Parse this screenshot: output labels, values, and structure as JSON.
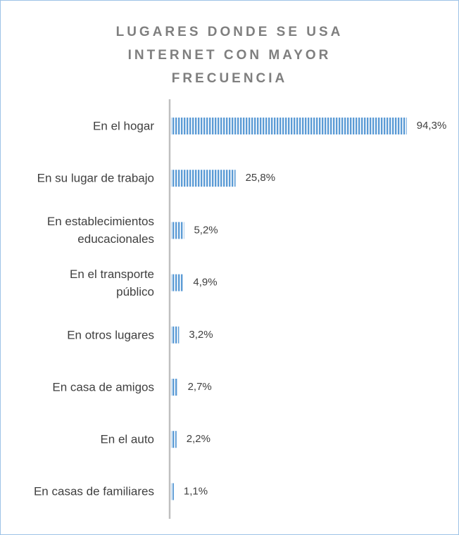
{
  "chart_data": {
    "type": "barh",
    "title": "LUGARES DONDE SE USA INTERNET CON MAYOR FRECUENCIA",
    "categories": [
      "En el hogar",
      "En su lugar de trabajo",
      "En establecimientos educacionales",
      "En el transporte público",
      "En otros lugares",
      "En casa de amigos",
      "En el auto",
      "En casas de familiares"
    ],
    "values": [
      94.3,
      25.8,
      5.2,
      4.9,
      3.2,
      2.7,
      2.2,
      1.1
    ],
    "value_labels": [
      "94,3%",
      "25,8%",
      "5,2%",
      "4,9%",
      "3,2%",
      "2,7%",
      "2,2%",
      "1,1%"
    ],
    "color": "#5b9bd5",
    "xlim": [
      0,
      100
    ]
  }
}
